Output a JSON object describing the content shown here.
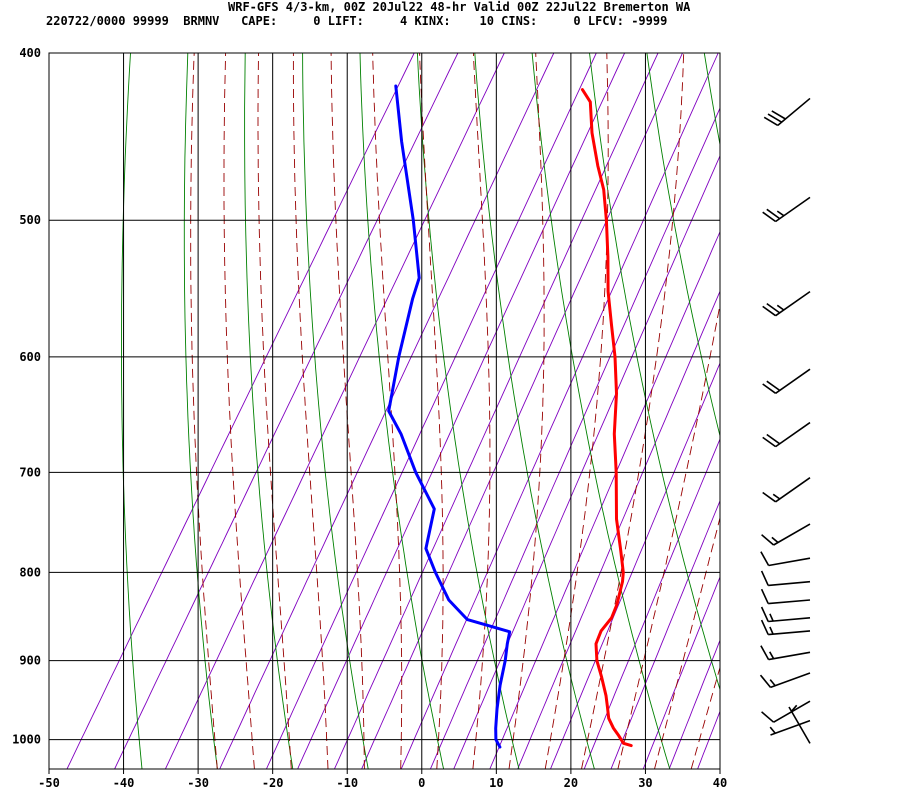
{
  "header": {
    "title": "WRF-GFS 4/3-km, 00Z 20Jul22 48-hr Valid 00Z 22Jul22 Bremerton WA",
    "subtitle": "220722/0000 99999  BRMNV   CAPE:     0 LIFT:     4 KINX:    10 CINS:     0 LFCV: -9999"
  },
  "colors": {
    "temperature": "#ff0000",
    "dewpoint": "#0000ff",
    "dry_adiabat": "#008000",
    "moist_adiabat": "#990000",
    "mixing_ratio": "#8000c0",
    "grid": "#000000",
    "wind_barb": "#000000"
  },
  "chart_data": {
    "type": "skew-t",
    "xlim": [
      -50,
      40
    ],
    "pressure_range": [
      1040,
      400
    ],
    "x_ticks": [
      -50,
      -40,
      -30,
      -20,
      -10,
      0,
      10,
      20,
      30,
      40
    ],
    "x_tick_labels": [
      "-50",
      "-40",
      "-30",
      "-20",
      "-10",
      "0",
      "10",
      "20",
      "30",
      "40"
    ],
    "p_ticks": [
      400,
      500,
      600,
      700,
      800,
      900,
      1000
    ],
    "p_tick_labels": [
      "400",
      "500",
      "600",
      "700",
      "800",
      "900",
      "1000"
    ],
    "grid": true,
    "temperature": [
      {
        "p": 1008,
        "t": 26.3
      },
      {
        "p": 1005,
        "t": 25.1
      },
      {
        "p": 995,
        "t": 23.9
      },
      {
        "p": 985,
        "t": 22.6
      },
      {
        "p": 972,
        "t": 21.2
      },
      {
        "p": 958,
        "t": 20.2
      },
      {
        "p": 943,
        "t": 19.1
      },
      {
        "p": 920,
        "t": 17.1
      },
      {
        "p": 900,
        "t": 15.2
      },
      {
        "p": 880,
        "t": 13.8
      },
      {
        "p": 865,
        "t": 13.5
      },
      {
        "p": 850,
        "t": 13.9
      },
      {
        "p": 835,
        "t": 13.6
      },
      {
        "p": 810,
        "t": 12.6
      },
      {
        "p": 800,
        "t": 12.0
      },
      {
        "p": 775,
        "t": 9.8
      },
      {
        "p": 745,
        "t": 7.0
      },
      {
        "p": 700,
        "t": 3.4
      },
      {
        "p": 665,
        "t": 0.2
      },
      {
        "p": 630,
        "t": -2.6
      },
      {
        "p": 600,
        "t": -5.6
      },
      {
        "p": 575,
        "t": -8.5
      },
      {
        "p": 550,
        "t": -11.5
      },
      {
        "p": 525,
        "t": -14.2
      },
      {
        "p": 500,
        "t": -17.2
      },
      {
        "p": 480,
        "t": -19.9
      },
      {
        "p": 465,
        "t": -22.5
      },
      {
        "p": 445,
        "t": -25.8
      },
      {
        "p": 427,
        "t": -28.4
      },
      {
        "p": 420,
        "t": -30.4
      }
    ],
    "dewpoint": [
      {
        "p": 1010,
        "t": 8.8
      },
      {
        "p": 1000,
        "t": 7.7
      },
      {
        "p": 985,
        "t": 6.8
      },
      {
        "p": 960,
        "t": 5.5
      },
      {
        "p": 930,
        "t": 4.1
      },
      {
        "p": 900,
        "t": 2.9
      },
      {
        "p": 880,
        "t": 1.9
      },
      {
        "p": 866,
        "t": 1.3
      },
      {
        "p": 852,
        "t": -5.3
      },
      {
        "p": 830,
        "t": -9.3
      },
      {
        "p": 800,
        "t": -13.2
      },
      {
        "p": 775,
        "t": -16.3
      },
      {
        "p": 735,
        "t": -18.2
      },
      {
        "p": 700,
        "t": -23.5
      },
      {
        "p": 665,
        "t": -28.4
      },
      {
        "p": 645,
        "t": -31.8
      },
      {
        "p": 600,
        "t": -34.6
      },
      {
        "p": 555,
        "t": -37.2
      },
      {
        "p": 540,
        "t": -37.9
      },
      {
        "p": 500,
        "t": -43.1
      },
      {
        "p": 475,
        "t": -46.8
      },
      {
        "p": 450,
        "t": -50.7
      },
      {
        "p": 418,
        "t": -55.7
      }
    ],
    "wind_barbs": [
      {
        "p": 1005,
        "dir": 330,
        "speed": 5
      },
      {
        "p": 975,
        "dir": 250,
        "speed": 5
      },
      {
        "p": 950,
        "dir": 240,
        "speed": 10
      },
      {
        "p": 915,
        "dir": 250,
        "speed": 15
      },
      {
        "p": 890,
        "dir": 260,
        "speed": 15
      },
      {
        "p": 865,
        "dir": 265,
        "speed": 15
      },
      {
        "p": 850,
        "dir": 265,
        "speed": 15
      },
      {
        "p": 830,
        "dir": 265,
        "speed": 10
      },
      {
        "p": 810,
        "dir": 265,
        "speed": 10
      },
      {
        "p": 785,
        "dir": 260,
        "speed": 10
      },
      {
        "p": 750,
        "dir": 240,
        "speed": 15
      },
      {
        "p": 705,
        "dir": 235,
        "speed": 15
      },
      {
        "p": 655,
        "dir": 235,
        "speed": 20
      },
      {
        "p": 610,
        "dir": 235,
        "speed": 20
      },
      {
        "p": 550,
        "dir": 235,
        "speed": 25
      },
      {
        "p": 485,
        "dir": 235,
        "speed": 25
      },
      {
        "p": 425,
        "dir": 230,
        "speed": 30
      }
    ]
  }
}
